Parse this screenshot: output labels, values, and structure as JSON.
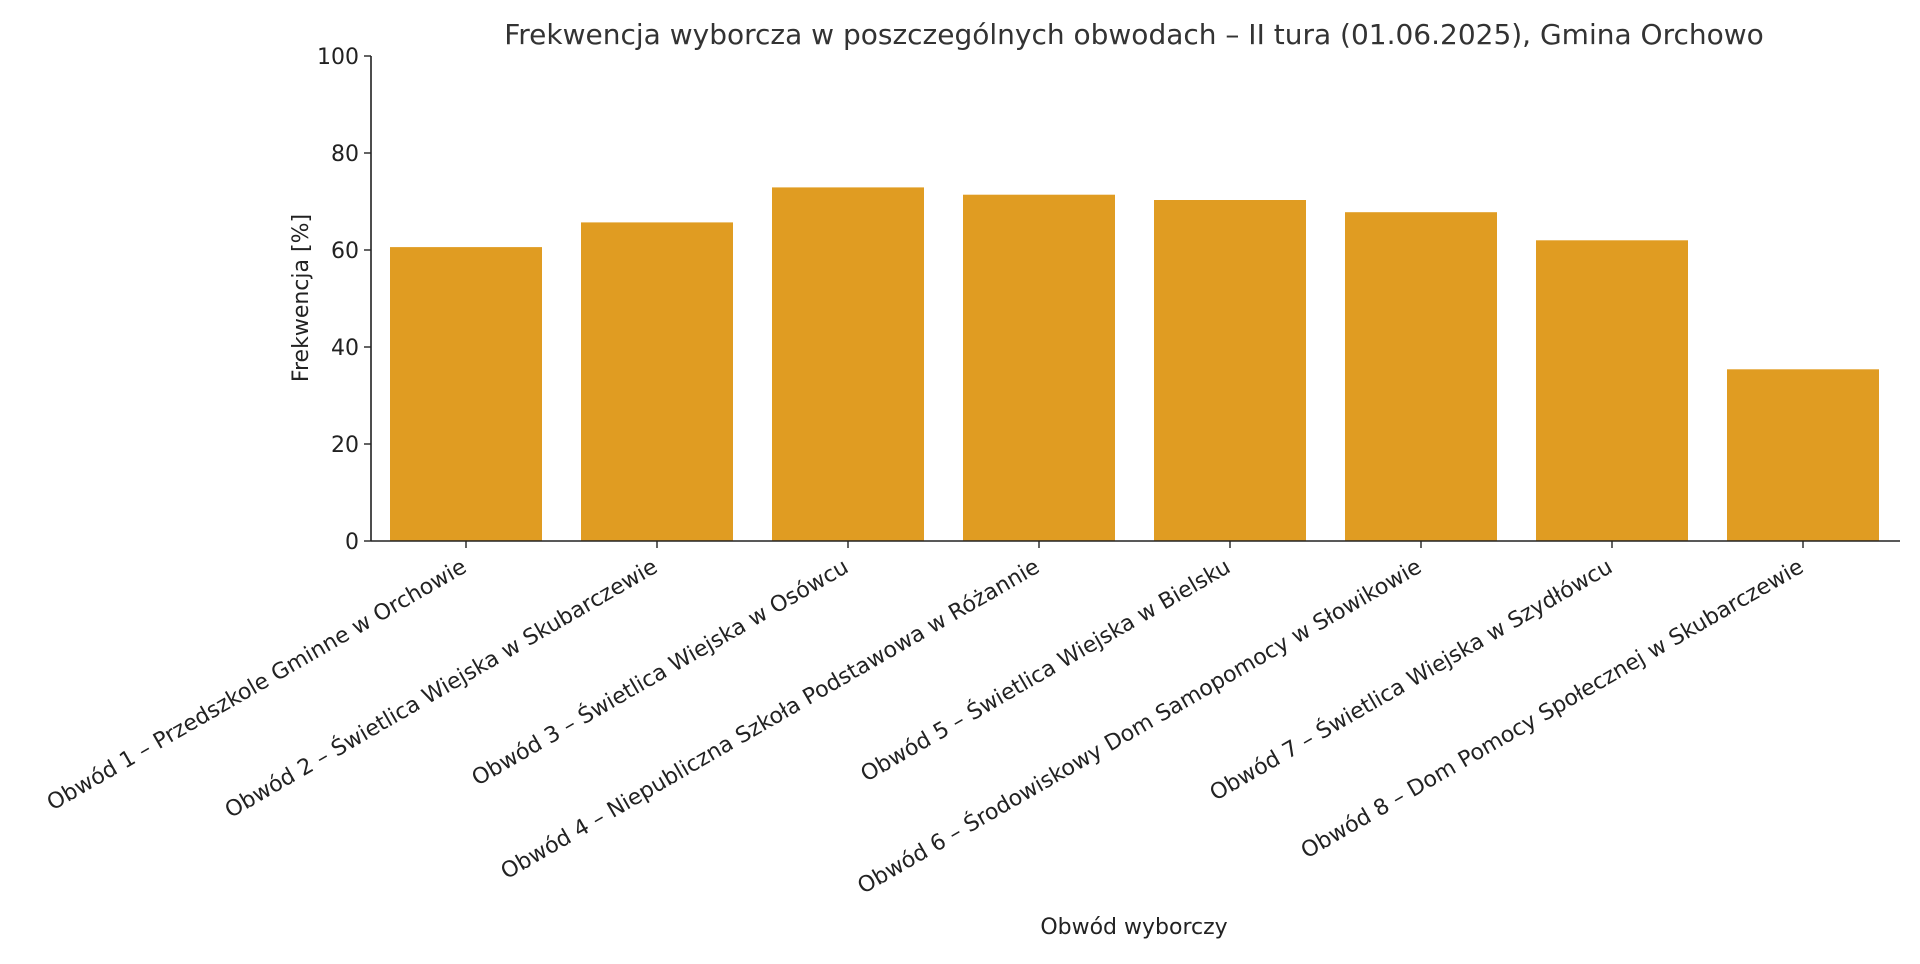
{
  "chart_data": {
    "type": "bar",
    "title": "Frekwencja wyborcza w poszczególnych obwodach – II tura (01.06.2025), Gmina Orchowo",
    "xlabel": "Obwód wyborczy",
    "ylabel": "Frekwencja [%]",
    "ylim": [
      0,
      100
    ],
    "yticks": [
      0,
      20,
      40,
      60,
      80,
      100
    ],
    "grid": false,
    "bar_color": "#E09C22",
    "categories": [
      "Obwód 1 – Przedszkole Gminne w Orchowie",
      "Obwód 2 – Świetlica Wiejska w Skubarczewie",
      "Obwód 3 – Świetlica Wiejska w Osówcu",
      "Obwód 4 – Niepubliczna Szkoła Podstawowa w Różannie",
      "Obwód 5 – Świetlica Wiejska w Bielsku",
      "Obwód 6 – Środowiskowy Dom Samopomocy w Słowikowie",
      "Obwód 7 – Świetlica Wiejska w Szydłówcu",
      "Obwód 8 – Dom Pomocy Społecznej w Skubarczewie"
    ],
    "values": [
      60.6,
      65.7,
      72.9,
      71.4,
      70.3,
      67.8,
      62.0,
      35.4
    ]
  }
}
